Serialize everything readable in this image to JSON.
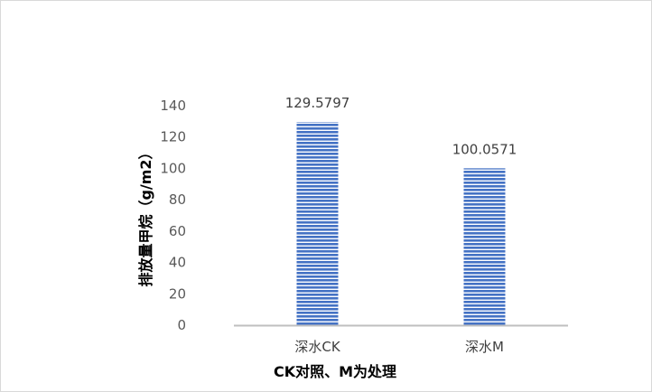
{
  "chart_data": {
    "type": "bar",
    "categories": [
      "深水CK",
      "深水M"
    ],
    "values": [
      129.5797,
      100.0571
    ],
    "data_labels": [
      "129.5797",
      "100.0571"
    ],
    "title": "",
    "xlabel": "CK对照、M为处理",
    "ylabel": "排放量甲烷（g/m2）",
    "ylim": [
      0,
      140
    ],
    "yticks": [
      0,
      20,
      40,
      60,
      80,
      100,
      120,
      140
    ],
    "grid": false,
    "legend": "none",
    "bar_color": "#4472c4",
    "bar_stripe_color": "#ffffff",
    "axis_color": "#bfbfbf"
  }
}
